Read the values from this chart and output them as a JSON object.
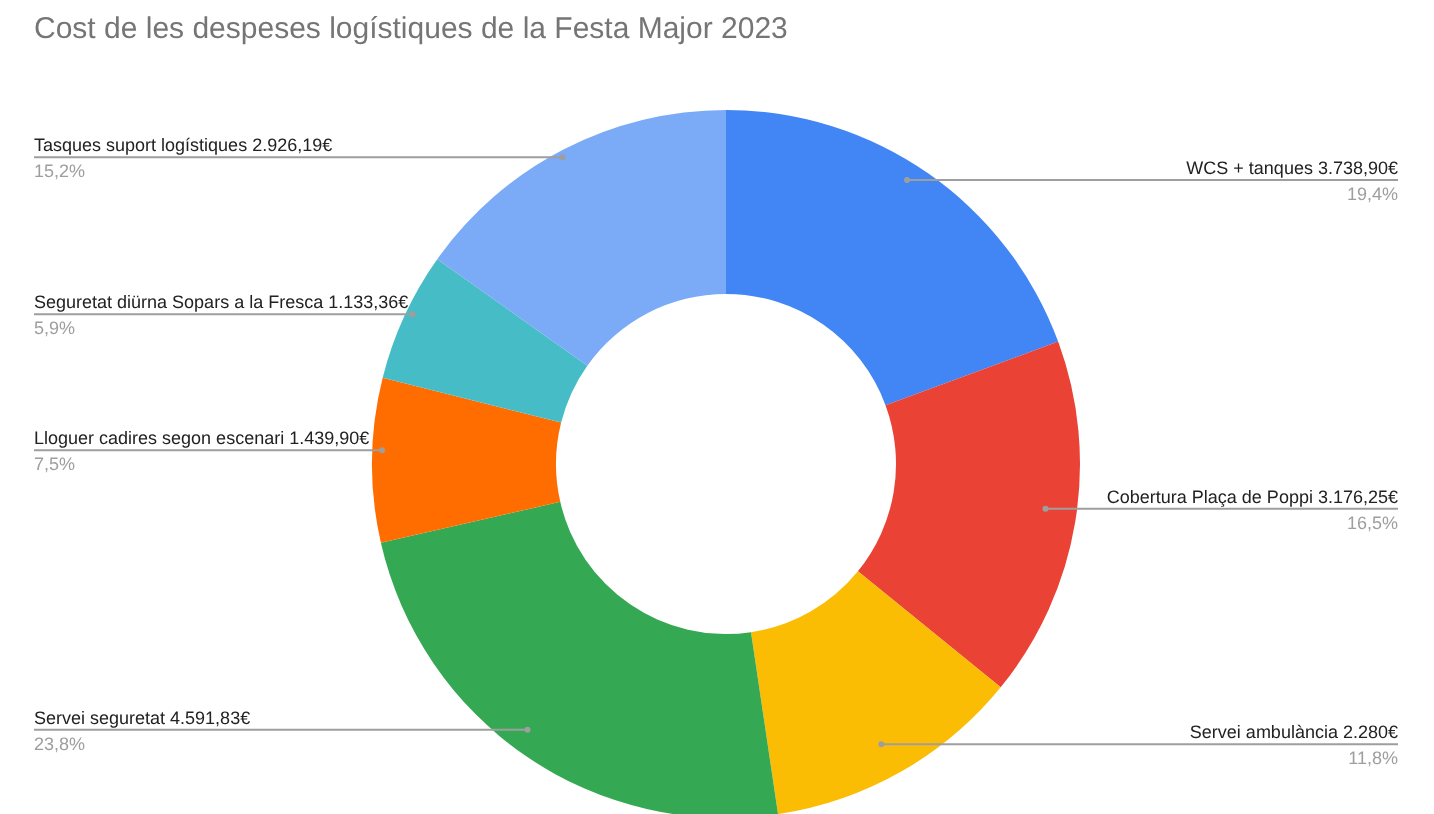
{
  "chart_data": {
    "type": "donut",
    "title": "Cost de les despeses logístiques de la Festa Major 2023",
    "categories": [
      "WCS + tanques  3.738,90€",
      "Cobertura Plaça de Poppi  3.176,25€",
      "Servei ambulància  2.280€",
      "Servei seguretat  4.591,83€",
      "Lloguer cadires segon escenari 1.439,90€",
      "Seguretat diürna Sopars a la Fresca 1.133,36€",
      "Tasques suport logístiques 2.926,19€"
    ],
    "values": [
      19.4,
      16.5,
      11.8,
      23.8,
      7.5,
      5.9,
      15.2
    ],
    "value_labels": [
      "19,4%",
      "16,5%",
      "11,8%",
      "23,8%",
      "7,5%",
      "5,9%",
      "15,2%"
    ],
    "colors": [
      "#4285f4",
      "#ea4335",
      "#fbbc04",
      "#34a853",
      "#ff6d01",
      "#46bdc6",
      "#7baaf7"
    ],
    "legend": false
  }
}
